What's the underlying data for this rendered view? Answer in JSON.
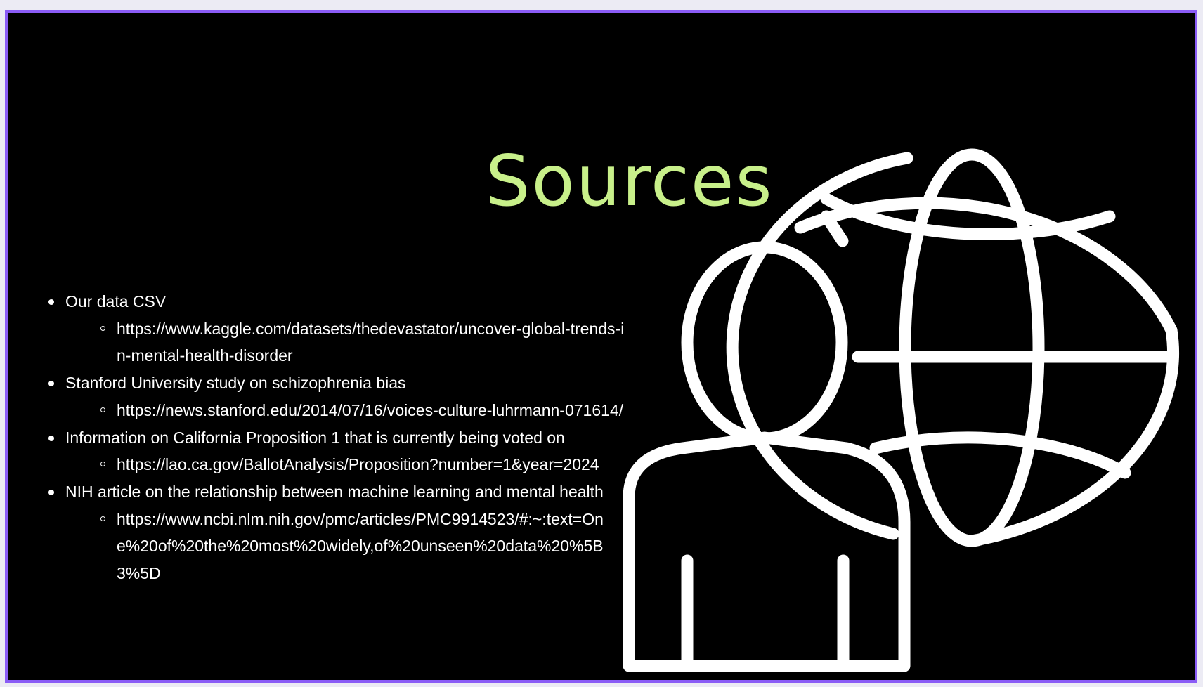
{
  "slide": {
    "title": "Sources",
    "title_color": "#c8f08a",
    "background_color": "#000000",
    "frame_color": "#8b5cf6",
    "illustration": "person-with-globe-icon"
  },
  "sources": [
    {
      "label": "Our data CSV",
      "url": "https://www.kaggle.com/datasets/thedevastator/uncover-global-trends-in-mental-health-disorder"
    },
    {
      "label": "Stanford University study on schizophrenia bias",
      "url": "https://news.stanford.edu/2014/07/16/voices-culture-luhrmann-071614/"
    },
    {
      "label": "Information on California Proposition 1  that is currently being voted on",
      "url": "https://lao.ca.gov/BallotAnalysis/Proposition?number=1&year=2024"
    },
    {
      "label": "NIH article on the relationship between machine learning and mental health",
      "url": "https://www.ncbi.nlm.nih.gov/pmc/articles/PMC9914523/#:~:text=One%20of%20the%20most%20widely,of%20unseen%20data%20%5B3%5D"
    }
  ]
}
